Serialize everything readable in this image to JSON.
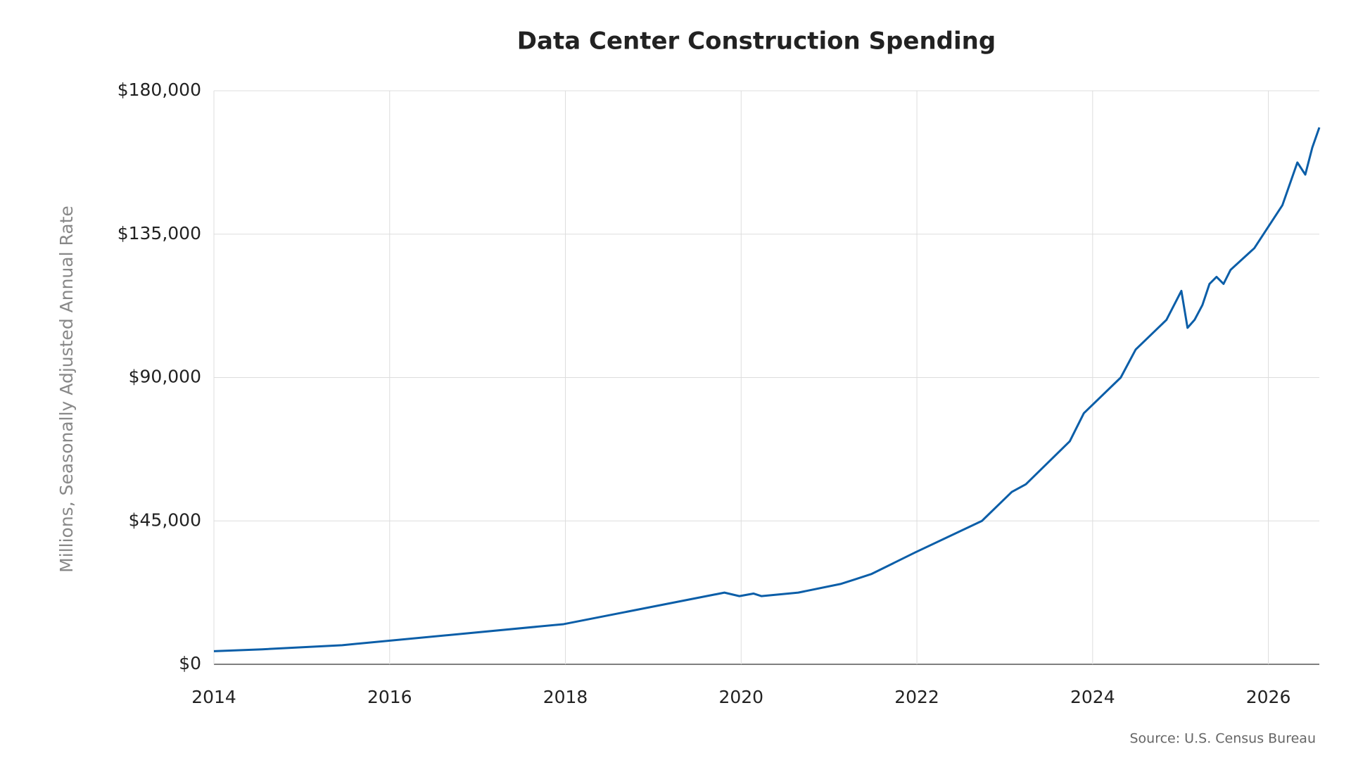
{
  "chart_data": {
    "type": "line",
    "title": "Data Center Construction Spending",
    "y_label": "Millions, Seasonally Adjusted Annual Rate",
    "source": "Source: U.S. Census Bureau",
    "x": [
      2014,
      2014.55,
      2015.46,
      2017.98,
      2019.81,
      2019.98,
      2020.14,
      2020.23,
      2020.65,
      2021.13,
      2021.29,
      2021.48,
      2021.98,
      2022.74,
      2023.08,
      2023.24,
      2023.74,
      2023.9,
      2024.32,
      2024.49,
      2024.84,
      2025.01,
      2025.08,
      2025.16,
      2025.25,
      2025.33,
      2025.41,
      2025.49,
      2025.57,
      2025.84,
      2026.16,
      2026.33,
      2026.42,
      2026.5,
      2026.58
    ],
    "series": [
      {
        "name": "Data Center Construction Spending",
        "color": "#0b5ea8",
        "values": [
          4100,
          4700,
          6000,
          12600,
          22500,
          21400,
          22200,
          21400,
          22500,
          25200,
          26600,
          28300,
          35100,
          45000,
          54100,
          56500,
          70000,
          78800,
          90000,
          98800,
          108100,
          117200,
          105600,
          108100,
          112800,
          119400,
          121600,
          119400,
          123800,
          130600,
          144100,
          157500,
          153700,
          162200,
          168500
        ]
      }
    ],
    "xlim": [
      2014,
      2026.58
    ],
    "xticks": [
      2014,
      2016,
      2018,
      2020,
      2022,
      2024,
      2026
    ],
    "ylim": [
      0,
      180000
    ],
    "yticks": [
      {
        "value": 0,
        "label": "$0"
      },
      {
        "value": 45000,
        "label": "$45,000"
      },
      {
        "value": 90000,
        "label": "$90,000"
      },
      {
        "value": 135000,
        "label": "$135,000"
      },
      {
        "value": 180000,
        "label": "$180,000"
      }
    ],
    "grid": true
  }
}
